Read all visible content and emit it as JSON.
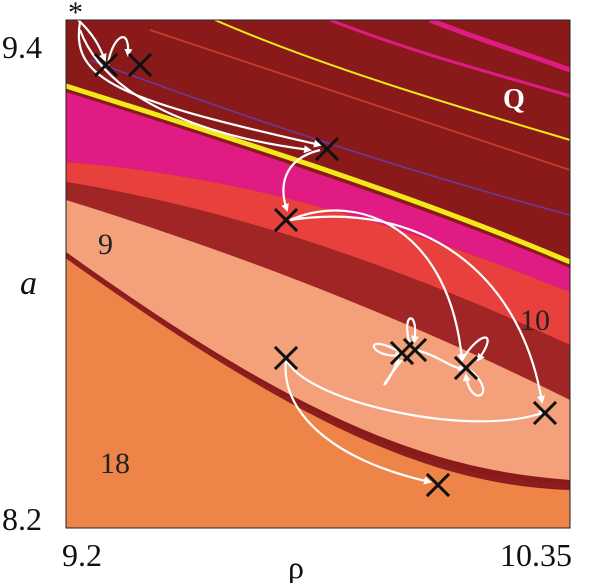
{
  "axes": {
    "x": {
      "label": "ρ",
      "min_label": "9.2",
      "max_label": "10.35"
    },
    "y": {
      "label": "a",
      "min_label": "8.2",
      "max_label": "9.4"
    }
  },
  "region_labels": [
    "Q",
    "9",
    "10",
    "18"
  ],
  "start_marker": "*",
  "colors": {
    "region_Q": "#8a1a1a",
    "band_dark_red": "#a02525",
    "band_magenta": "#e01c84",
    "band_yellow": "#f2e81a",
    "band_red": "#e8403c",
    "region_9": "#f4a07a",
    "region_18": "#ee8448",
    "boundary_line": "#8b1f1f",
    "trajectory": "#ffffff",
    "markers": "#111111"
  }
}
